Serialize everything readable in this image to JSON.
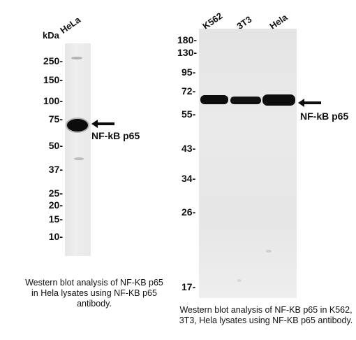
{
  "left_panel": {
    "kda_label": "kDa",
    "lanes": [
      "HeLa"
    ],
    "mw_markers": [
      "250-",
      "150-",
      "100-",
      "75-",
      "50-",
      "37-",
      "25-",
      "20-",
      "15-",
      "10-"
    ],
    "target_label": "NF-kB p65",
    "caption": "Western blot analysis of NF-KB p65 in Hela lysates using NF-KB p65 antibody."
  },
  "right_panel": {
    "lanes": [
      "K562",
      "3T3",
      "Hela"
    ],
    "mw_markers": [
      "180-",
      "130-",
      "95-",
      "72-",
      "55-",
      "43-",
      "34-",
      "26-",
      "17-"
    ],
    "target_label": "NF-kB p65",
    "caption": "Western blot analysis of NF-KB p65 in K562, 3T3, Hela lysates using NF-KB p65 antibody."
  },
  "colors": {
    "band": "#0d0d0d",
    "membrane": "#e8e8e8",
    "text": "#111111"
  },
  "icons": [
    "left-arrow-icon",
    "left-arrow-icon"
  ]
}
